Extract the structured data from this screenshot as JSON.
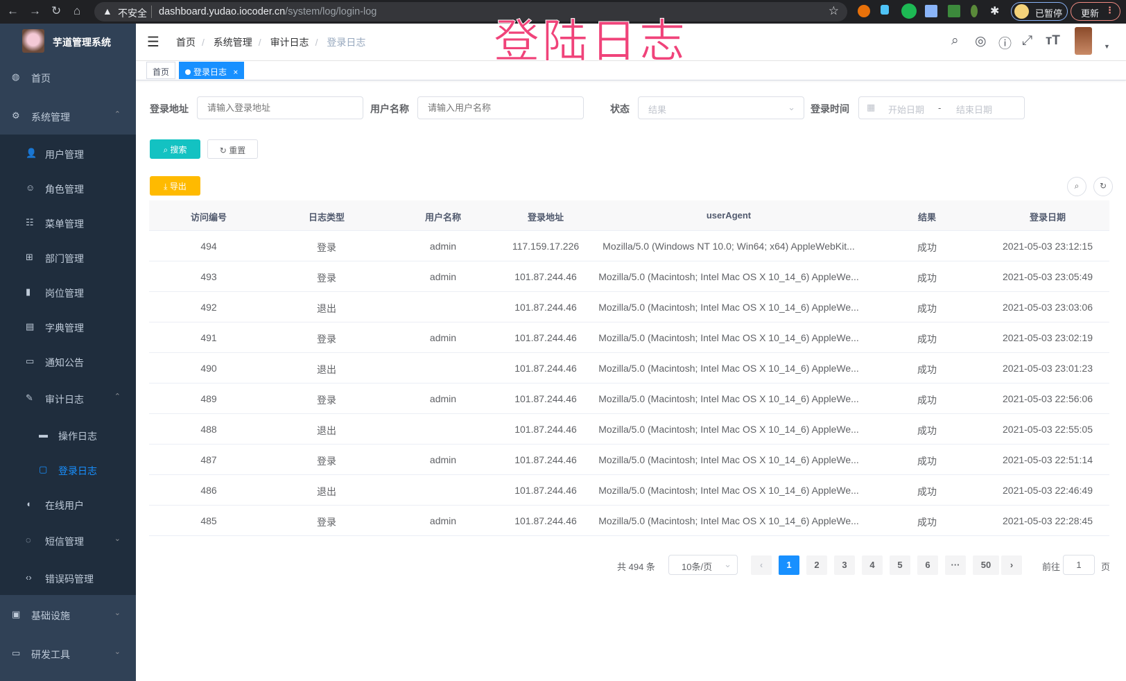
{
  "browser": {
    "insecure": "不安全",
    "url_host": "dashboard.yudao.iocoder.cn",
    "url_path": "/system/log/login-log",
    "paused": "已暂停",
    "update": "更新"
  },
  "overlay_title": "登陆日志",
  "app": {
    "title": "芋道管理系统"
  },
  "sidebar": {
    "items": [
      {
        "label": "首页",
        "icon": "dashboard-icon"
      },
      {
        "label": "系统管理",
        "icon": "gear-icon"
      },
      {
        "label": "用户管理",
        "icon": "user-icon"
      },
      {
        "label": "角色管理",
        "icon": "peoples-icon"
      },
      {
        "label": "菜单管理",
        "icon": "tree-table-icon"
      },
      {
        "label": "部门管理",
        "icon": "tree-icon"
      },
      {
        "label": "岗位管理",
        "icon": "post-icon"
      },
      {
        "label": "字典管理",
        "icon": "dict-icon"
      },
      {
        "label": "通知公告",
        "icon": "message-icon"
      },
      {
        "label": "审计日志",
        "icon": "log-icon"
      },
      {
        "label": "操作日志",
        "icon": "form-icon"
      },
      {
        "label": "登录日志",
        "icon": "logininfor-icon"
      },
      {
        "label": "在线用户",
        "icon": "online-icon"
      },
      {
        "label": "短信管理",
        "icon": "validCode-icon"
      },
      {
        "label": "错误码管理",
        "icon": "code-icon"
      },
      {
        "label": "基础设施",
        "icon": "monitor-icon"
      },
      {
        "label": "研发工具",
        "icon": "tool-icon"
      }
    ]
  },
  "breadcrumb": [
    "首页",
    "系统管理",
    "审计日志",
    "登录日志"
  ],
  "tags": {
    "home": "首页",
    "current": "登录日志",
    "close": "×"
  },
  "filters": {
    "ip_label": "登录地址",
    "ip_placeholder": "请输入登录地址",
    "user_label": "用户名称",
    "user_placeholder": "请输入用户名称",
    "status_label": "状态",
    "status_placeholder": "结果",
    "time_label": "登录时间",
    "start_placeholder": "开始日期",
    "range_sep": "-",
    "end_placeholder": "结束日期",
    "search": "搜索",
    "reset": "重置",
    "export": "导出"
  },
  "table": {
    "columns": [
      "访问编号",
      "日志类型",
      "用户名称",
      "登录地址",
      "userAgent",
      "结果",
      "登录日期"
    ],
    "rows": [
      [
        "494",
        "登录",
        "admin",
        "117.159.17.226",
        "Mozilla/5.0 (Windows NT 10.0; Win64; x64) AppleWebKit...",
        "成功",
        "2021-05-03 23:12:15"
      ],
      [
        "493",
        "登录",
        "admin",
        "101.87.244.46",
        "Mozilla/5.0 (Macintosh; Intel Mac OS X 10_14_6) AppleWe...",
        "成功",
        "2021-05-03 23:05:49"
      ],
      [
        "492",
        "退出",
        "",
        "101.87.244.46",
        "Mozilla/5.0 (Macintosh; Intel Mac OS X 10_14_6) AppleWe...",
        "成功",
        "2021-05-03 23:03:06"
      ],
      [
        "491",
        "登录",
        "admin",
        "101.87.244.46",
        "Mozilla/5.0 (Macintosh; Intel Mac OS X 10_14_6) AppleWe...",
        "成功",
        "2021-05-03 23:02:19"
      ],
      [
        "490",
        "退出",
        "",
        "101.87.244.46",
        "Mozilla/5.0 (Macintosh; Intel Mac OS X 10_14_6) AppleWe...",
        "成功",
        "2021-05-03 23:01:23"
      ],
      [
        "489",
        "登录",
        "admin",
        "101.87.244.46",
        "Mozilla/5.0 (Macintosh; Intel Mac OS X 10_14_6) AppleWe...",
        "成功",
        "2021-05-03 22:56:06"
      ],
      [
        "488",
        "退出",
        "",
        "101.87.244.46",
        "Mozilla/5.0 (Macintosh; Intel Mac OS X 10_14_6) AppleWe...",
        "成功",
        "2021-05-03 22:55:05"
      ],
      [
        "487",
        "登录",
        "admin",
        "101.87.244.46",
        "Mozilla/5.0 (Macintosh; Intel Mac OS X 10_14_6) AppleWe...",
        "成功",
        "2021-05-03 22:51:14"
      ],
      [
        "486",
        "退出",
        "",
        "101.87.244.46",
        "Mozilla/5.0 (Macintosh; Intel Mac OS X 10_14_6) AppleWe...",
        "成功",
        "2021-05-03 22:46:49"
      ],
      [
        "485",
        "登录",
        "admin",
        "101.87.244.46",
        "Mozilla/5.0 (Macintosh; Intel Mac OS X 10_14_6) AppleWe...",
        "成功",
        "2021-05-03 22:28:45"
      ]
    ]
  },
  "pagination": {
    "total": "共 494 条",
    "page_size": "10条/页",
    "pages": [
      "1",
      "2",
      "3",
      "4",
      "5",
      "6",
      "···",
      "50"
    ],
    "current": "1",
    "prev": "‹",
    "next": "›",
    "goto_label": "前往",
    "goto_value": "1",
    "goto_suffix": "页"
  },
  "colors": {
    "accent": "#1890ff",
    "sidebar": "#304156",
    "submenu": "#1f2d3d",
    "search_btn": "#13c2c2",
    "export_btn": "#ffba00",
    "overlay": "#f0437a"
  }
}
